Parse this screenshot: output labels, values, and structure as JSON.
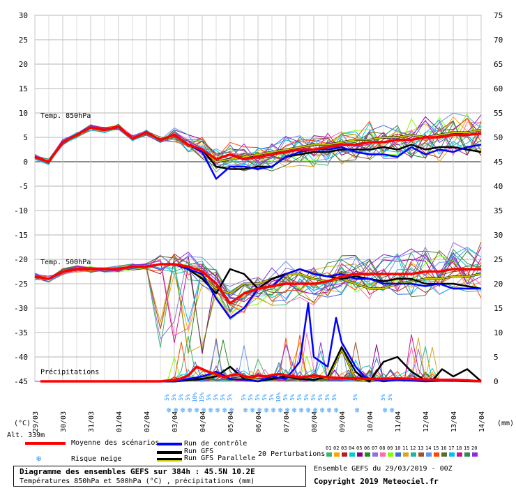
{
  "chart_data": {
    "type": "line",
    "left_axis": {
      "unit": "(°C)",
      "ticks": [
        30,
        25,
        20,
        15,
        10,
        5,
        0,
        -5,
        -10,
        -15,
        -20,
        -25,
        -30,
        -35,
        -40,
        -45
      ]
    },
    "right_axis": {
      "unit": "(mm)",
      "ticks": [
        75,
        70,
        65,
        60,
        55,
        50,
        45,
        40,
        35,
        30,
        25,
        20,
        15,
        10,
        5,
        0
      ]
    },
    "x_ticks": [
      "30/03",
      "31/03",
      "01/04",
      "02/04",
      "03/04",
      "04/04",
      "05/04",
      "06/04",
      "07/04",
      "08/04",
      "09/04",
      "10/04",
      "11/04",
      "12/04",
      "13/04",
      "14/04"
    ],
    "x_first_label": "29/03",
    "grid": true,
    "panel_labels": {
      "t850": "Temp. 850hPa",
      "t500": "Temp. 500hPa",
      "precip": "Précipitations"
    },
    "altitude": "Alt. 339m",
    "snow_markers": [
      {
        "t": 4.8,
        "label": "5%"
      },
      {
        "t": 5.05,
        "label": "5%"
      },
      {
        "t": 5.3,
        "label": "5%"
      },
      {
        "t": 5.55,
        "label": "5%"
      },
      {
        "t": 5.8,
        "label": "10%"
      },
      {
        "t": 6.05,
        "label": "15%"
      },
      {
        "t": 6.3,
        "label": "5%"
      },
      {
        "t": 6.55,
        "label": "5%"
      },
      {
        "t": 6.8,
        "label": "5%"
      },
      {
        "t": 7.05,
        "label": "5%"
      },
      {
        "t": 7.55,
        "label": "5%"
      },
      {
        "t": 7.8,
        "label": "5%"
      },
      {
        "t": 8.05,
        "label": "5%"
      },
      {
        "t": 8.3,
        "label": "5%"
      },
      {
        "t": 8.55,
        "label": "5%"
      },
      {
        "t": 8.8,
        "label": "10%"
      },
      {
        "t": 9.05,
        "label": "5%"
      },
      {
        "t": 9.3,
        "label": "5%"
      },
      {
        "t": 9.55,
        "label": "5%"
      },
      {
        "t": 9.8,
        "label": "5%"
      },
      {
        "t": 10.05,
        "label": "5%"
      },
      {
        "t": 10.3,
        "label": "5%"
      },
      {
        "t": 10.55,
        "label": "5%"
      },
      {
        "t": 10.8,
        "label": "5%"
      },
      {
        "t": 11.55,
        "label": "5%"
      },
      {
        "t": 12.55,
        "label": "5%"
      },
      {
        "t": 12.8,
        "label": "5%"
      }
    ],
    "series": [
      {
        "name": "Moyenne des scénarios",
        "color": "#ff0000",
        "panel": "t850",
        "x": [
          0,
          0.5,
          1,
          1.5,
          2,
          2.5,
          3,
          3.5,
          4,
          4.5,
          5,
          5.5,
          6,
          6.5,
          7,
          7.5,
          8,
          8.5,
          9,
          9.5,
          10,
          10.5,
          11,
          11.5,
          12,
          12.5,
          13,
          13.5,
          14,
          14.5,
          15,
          15.5,
          16
        ],
        "y": [
          1,
          0,
          4,
          5.5,
          7,
          6.5,
          7.2,
          4.8,
          6,
          4.5,
          5.5,
          3.5,
          2.5,
          0.5,
          1.5,
          0.5,
          1,
          1.5,
          2,
          2.5,
          2.5,
          3,
          3.5,
          3.5,
          4,
          4,
          4.5,
          4.5,
          5,
          5,
          5.5,
          5.5,
          5.8
        ]
      },
      {
        "name": "Run de contrôle",
        "color": "#0000ff",
        "panel": "t850",
        "x": [
          0,
          0.5,
          1,
          1.5,
          2,
          2.5,
          3,
          3.5,
          4,
          4.5,
          5,
          5.5,
          6,
          6.5,
          7,
          7.5,
          8,
          8.5,
          9,
          9.5,
          10,
          10.5,
          11,
          11.5,
          12,
          12.5,
          13,
          13.5,
          14,
          14.5,
          15,
          15.5,
          16
        ],
        "y": [
          1,
          0,
          4,
          5.5,
          7,
          6.5,
          7.2,
          4.8,
          6,
          4.5,
          5.5,
          3.5,
          2,
          -3.5,
          -1,
          -1,
          -1.5,
          -1,
          1,
          2,
          2.5,
          2.5,
          3,
          2,
          1.5,
          1.5,
          1,
          3,
          1.5,
          2.5,
          2,
          3,
          3.5
        ]
      },
      {
        "name": "Run GFS",
        "color": "#000000",
        "panel": "t850",
        "x": [
          0,
          0.5,
          1,
          1.5,
          2,
          2.5,
          3,
          3.5,
          4,
          4.5,
          5,
          5.5,
          6,
          6.5,
          7,
          7.5,
          8,
          8.5,
          9,
          9.5,
          10,
          10.5,
          11,
          11.5,
          12,
          12.5,
          13,
          13.5,
          14,
          14.5,
          15,
          15.5,
          16
        ],
        "y": [
          1,
          0,
          4,
          5.5,
          7,
          6.5,
          7.2,
          4.8,
          6,
          4.5,
          5.5,
          3.5,
          2.5,
          -1,
          -1.5,
          -1.5,
          -1,
          -1,
          1,
          1.5,
          2,
          2,
          2.5,
          2.5,
          2.5,
          3,
          2.5,
          3.5,
          2.5,
          3,
          3,
          2.5,
          2
        ]
      },
      {
        "name": "Run GFS Parallele",
        "color": "#c8c800",
        "panel": "t850",
        "x": [
          0,
          0.5,
          1,
          1.5,
          2,
          2.5,
          3,
          3.5,
          4,
          4.5,
          5,
          5.5,
          6,
          6.5,
          7,
          7.5,
          8,
          8.5,
          9,
          9.5,
          10,
          10.5,
          11,
          11.5,
          12,
          12.5,
          13,
          13.5,
          14,
          14.5,
          15,
          15.5,
          16
        ],
        "y": [
          1,
          0,
          4,
          5.5,
          7,
          6.5,
          7.2,
          4.8,
          6,
          4.5,
          5.5,
          3.5,
          2.5,
          0,
          0.5,
          1,
          1.5,
          2,
          2.5,
          3,
          3.5,
          3.5,
          4,
          4.5,
          4.5,
          5,
          5,
          5.5,
          5,
          5.5,
          6,
          6,
          6.5
        ]
      },
      {
        "name": "Moyenne des scénarios",
        "color": "#ff0000",
        "panel": "t500",
        "x": [
          0,
          0.5,
          1,
          1.5,
          2,
          2.5,
          3,
          3.5,
          4,
          4.5,
          5,
          5.5,
          6,
          6.5,
          7,
          7.5,
          8,
          8.5,
          9,
          9.5,
          10,
          10.5,
          11,
          11.5,
          12,
          12.5,
          13,
          13.5,
          14,
          14.5,
          15,
          15.5,
          16
        ],
        "y": [
          -23.5,
          -24,
          -22.5,
          -22,
          -22,
          -22,
          -22,
          -21.5,
          -21.5,
          -21,
          -21,
          -21.5,
          -22.5,
          -25,
          -29,
          -27,
          -26,
          -25.5,
          -25,
          -25,
          -25,
          -24.5,
          -23.5,
          -23,
          -23,
          -23,
          -23,
          -23,
          -22.5,
          -22.5,
          -22,
          -22,
          -22
        ]
      },
      {
        "name": "Run de contrôle",
        "color": "#0000ff",
        "panel": "t500",
        "x": [
          0,
          0.5,
          1,
          1.5,
          2,
          2.5,
          3,
          3.5,
          4,
          4.5,
          5,
          5.5,
          6,
          6.5,
          7,
          7.5,
          8,
          8.5,
          9,
          9.5,
          10,
          10.5,
          11,
          11.5,
          12,
          12.5,
          13,
          13.5,
          14,
          14.5,
          15,
          15.5,
          16
        ],
        "y": [
          -23.5,
          -24,
          -22.5,
          -22,
          -22,
          -22,
          -22,
          -21.5,
          -21.5,
          -21,
          -21,
          -22,
          -23,
          -28,
          -32,
          -30,
          -26,
          -25.5,
          -23,
          -22,
          -23,
          -23.5,
          -23,
          -24,
          -24,
          -25,
          -25,
          -25,
          -25.5,
          -25,
          -26,
          -26,
          -26
        ]
      },
      {
        "name": "Run GFS",
        "color": "#000000",
        "panel": "t500",
        "x": [
          0,
          0.5,
          1,
          1.5,
          2,
          2.5,
          3,
          3.5,
          4,
          4.5,
          5,
          5.5,
          6,
          6.5,
          7,
          7.5,
          8,
          8.5,
          9,
          9.5,
          10,
          10.5,
          11,
          11.5,
          12,
          12.5,
          13,
          13.5,
          14,
          14.5,
          15,
          15.5,
          16
        ],
        "y": [
          -23.5,
          -24,
          -22.5,
          -22,
          -22,
          -22,
          -22,
          -21.5,
          -21.5,
          -21,
          -21,
          -22,
          -24,
          -27,
          -22,
          -23,
          -26,
          -24,
          -23,
          -22,
          -23,
          -23.5,
          -24,
          -23.5,
          -24,
          -24.5,
          -24,
          -24,
          -25,
          -25,
          -25,
          -25.5,
          -26
        ]
      },
      {
        "name": "Run GFS Parallele",
        "color": "#c8c800",
        "panel": "t500",
        "x": [
          0,
          0.5,
          1,
          1.5,
          2,
          2.5,
          3,
          3.5,
          4,
          4.5,
          5,
          5.5,
          6,
          6.5,
          7,
          7.5,
          8,
          8.5,
          9,
          9.5,
          10,
          10.5,
          11,
          11.5,
          12,
          12.5,
          13,
          13.5,
          14,
          14.5,
          15,
          15.5,
          16
        ],
        "y": [
          -23.5,
          -24,
          -22.5,
          -22,
          -22,
          -22,
          -22,
          -21.5,
          -21.5,
          -21,
          -21,
          -22,
          -23.5,
          -26,
          -27,
          -25,
          -25,
          -24,
          -23,
          -23,
          -24,
          -24.5,
          -24,
          -25,
          -26,
          -26,
          -25,
          -24.5,
          -24,
          -24,
          -23.5,
          -23.5,
          -23
        ]
      },
      {
        "name": "Moyenne des scénarios",
        "color": "#ff0000",
        "panel": "precip",
        "x": [
          0.2,
          1,
          2,
          3,
          4,
          4.5,
          5,
          5.2,
          5.5,
          5.8,
          6,
          6.2,
          6.5,
          6.8,
          7,
          7.3,
          7.5,
          7.8,
          8,
          8.3,
          8.5,
          8.8,
          9,
          9.3,
          9.5,
          9.8,
          10,
          10.5,
          11,
          11.5,
          12,
          12.5,
          13,
          13.5,
          14,
          14.5,
          15,
          15.5,
          16
        ],
        "y": [
          0,
          0,
          0,
          0,
          0,
          0,
          0.3,
          0.5,
          1.2,
          3,
          2.5,
          2,
          1.5,
          0.8,
          1.2,
          1.5,
          1,
          0.8,
          1.2,
          1,
          1.3,
          1.5,
          1.2,
          1,
          0.8,
          1,
          1.2,
          0.8,
          0.7,
          0.6,
          0.5,
          0.5,
          0.6,
          0.5,
          0.4,
          0.3,
          0.3,
          0.2,
          0
        ]
      },
      {
        "name": "Run de contrôle",
        "color": "#0000ff",
        "panel": "precip",
        "x": [
          0.2,
          5,
          6,
          6.5,
          7,
          7.5,
          8,
          8.5,
          9,
          9.5,
          9.8,
          10,
          10.5,
          10.8,
          11,
          11.3,
          11.5,
          11.8,
          12,
          12.5,
          13,
          14,
          15,
          16
        ],
        "y": [
          0,
          0,
          1,
          2,
          0.5,
          0.3,
          0,
          1,
          0.5,
          4,
          16,
          5,
          3,
          13,
          8,
          5,
          3,
          1,
          0.5,
          0,
          0.3,
          0,
          0.2,
          0
        ]
      },
      {
        "name": "Run GFS",
        "color": "#000000",
        "panel": "precip",
        "x": [
          0.2,
          5,
          6,
          6.5,
          7,
          7.5,
          8,
          8.5,
          9,
          9.5,
          10,
          10.5,
          11,
          11.3,
          11.5,
          11.8,
          12,
          12.5,
          13,
          13.5,
          14,
          14.3,
          14.6,
          15,
          15.5,
          16
        ],
        "y": [
          0,
          0,
          0.5,
          1,
          3,
          0.5,
          0,
          0.5,
          1,
          0.5,
          0.3,
          1,
          7,
          4,
          2,
          0.5,
          0,
          4,
          5,
          2,
          0.2,
          0.5,
          2.5,
          1,
          2.5,
          0
        ]
      },
      {
        "name": "Run GFS Parallele",
        "color": "#c8c800",
        "panel": "precip",
        "x": [
          0.2,
          5,
          6,
          6.5,
          7,
          7.5,
          8,
          8.5,
          9,
          9.5,
          10,
          10.5,
          11,
          11.5,
          12,
          12.5,
          13,
          14,
          15,
          16
        ],
        "y": [
          0,
          0,
          0.5,
          1.5,
          0.5,
          0.8,
          0.3,
          0.5,
          1,
          0.5,
          1,
          0.5,
          6.5,
          0.5,
          0,
          0.5,
          0.3,
          0.2,
          0.1,
          0
        ]
      }
    ],
    "perturbation_colors": [
      "#3cb371",
      "#ffa500",
      "#b22222",
      "#00ced1",
      "#8b008b",
      "#228b22",
      "#9370db",
      "#ff69b4",
      "#7fff00",
      "#4169e1",
      "#daa520",
      "#20b2aa",
      "#a0522d",
      "#6495ed",
      "#ff4500",
      "#556b2f",
      "#00bfff",
      "#c71585",
      "#2e8b57",
      "#8a2be2"
    ]
  },
  "legend": {
    "mean": "Moyenne des scénarios",
    "control": "Run de contrôle",
    "gfs": "Run GFS",
    "gfs_parallel": "Run GFS Parallele",
    "snow_risk": "Risque neige",
    "perturbations": "20 Perturbations",
    "pert_numbers": [
      "01",
      "02",
      "03",
      "04",
      "05",
      "06",
      "07",
      "08",
      "09",
      "10",
      "11",
      "12",
      "13",
      "14",
      "15",
      "16",
      "17",
      "18",
      "19",
      "20"
    ]
  },
  "footer": {
    "title": "Diagramme des ensembles GEFS sur 384h : 45.5N 10.2E",
    "subtitle": "Températures 850hPa et 500hPa (°C) , précipitations (mm)",
    "ensemble_run": "Ensemble GEFS du 29/03/2019 - 00Z",
    "copyright": "Copyright 2019 Meteociel.fr"
  }
}
